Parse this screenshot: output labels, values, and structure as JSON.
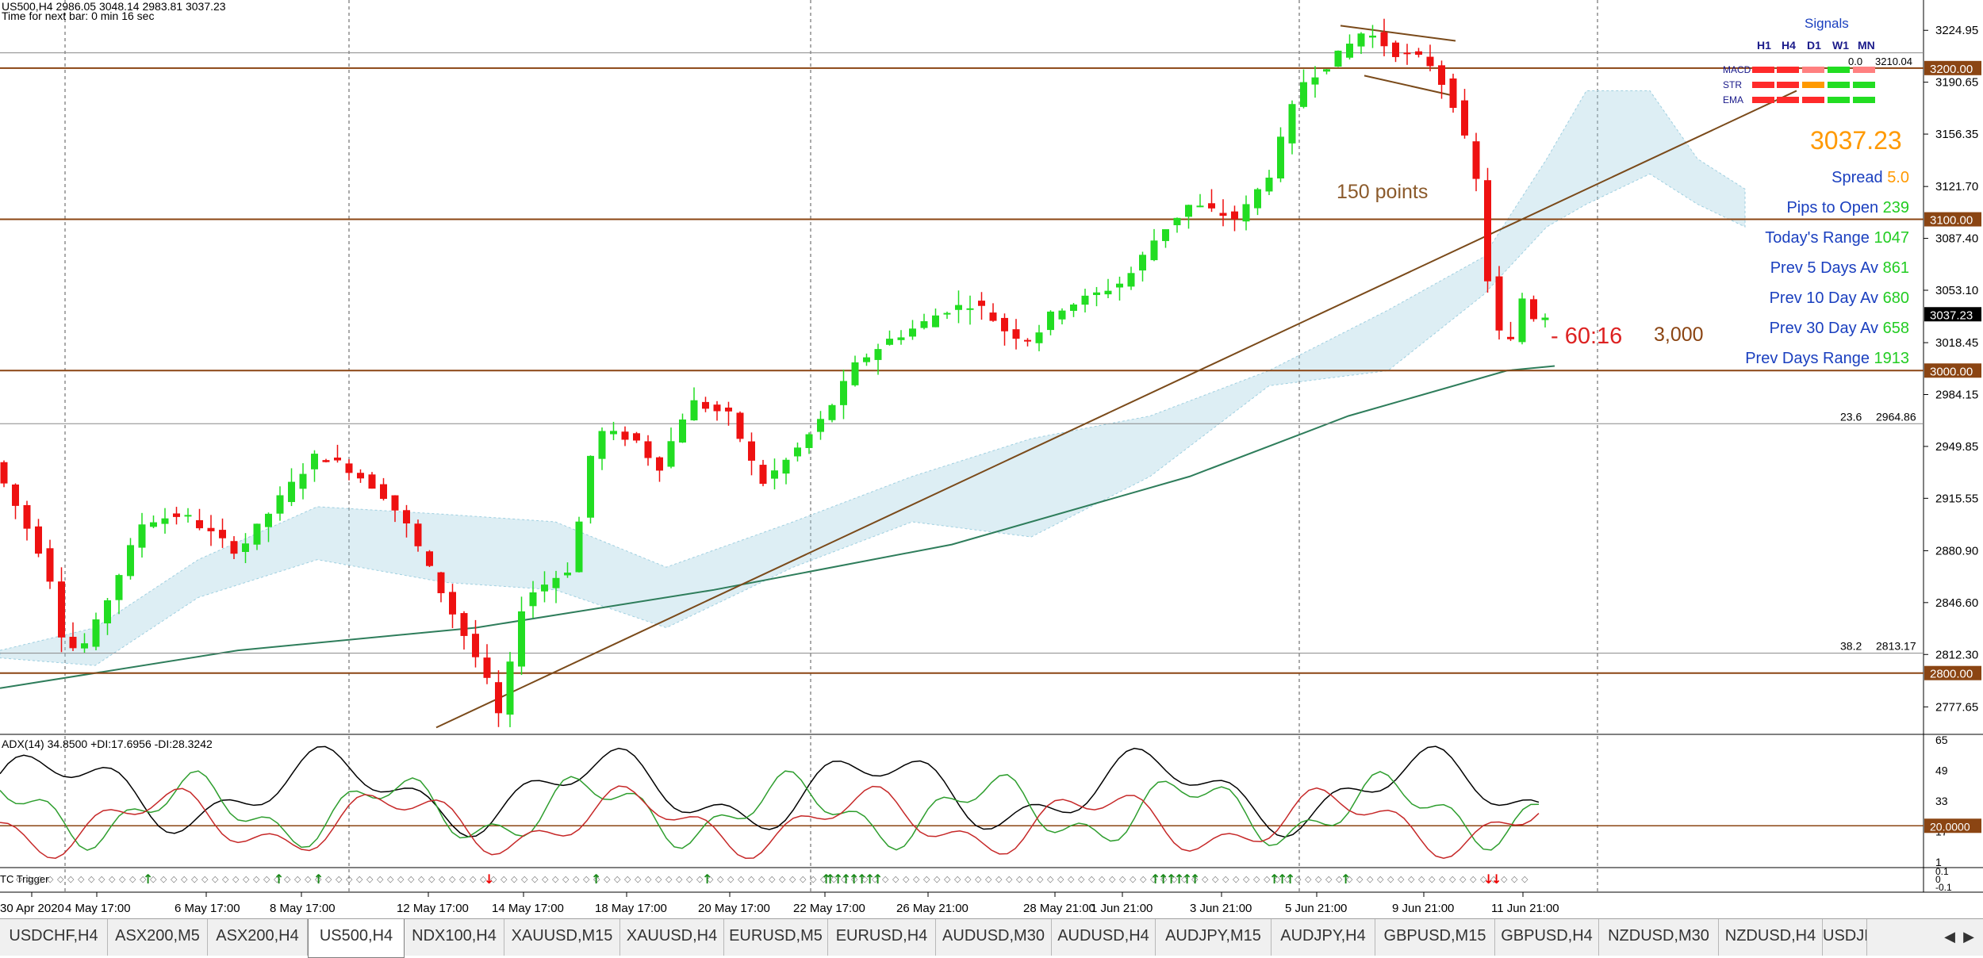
{
  "header": {
    "symbol_line": "US500,H4  2986.05 3048.14 2983.81 3037.23",
    "time_next_bar": "Time for next bar: 0 min 16 sec"
  },
  "price_axis": {
    "ticks": [
      "3224.95",
      "3190.65",
      "3156.35",
      "3121.70",
      "3087.40",
      "3053.10",
      "3018.45",
      "2984.15",
      "2949.85",
      "2915.55",
      "2880.90",
      "2846.60",
      "2812.30",
      "2777.65"
    ],
    "level_labels": [
      {
        "value": 3200,
        "text": "3200.00"
      },
      {
        "value": 3100,
        "text": "3100.00"
      },
      {
        "value": 3037.23,
        "text": "3037.23"
      },
      {
        "value": 3000,
        "text": "3000.00"
      },
      {
        "value": 2800,
        "text": "2800.00"
      }
    ],
    "min": 2760,
    "max": 3245
  },
  "time_axis": {
    "labels": [
      "30 Apr 2020",
      "4 May 17:00",
      "6 May 17:00",
      "8 May 17:00",
      "12 May 17:00",
      "14 May 17:00",
      "18 May 17:00",
      "20 May 17:00",
      "22 May 17:00",
      "26 May 21:00",
      "28 May 21:00",
      "1 Jun 21:00",
      "3 Jun 21:00",
      "5 Jun 21:00",
      "9 Jun 21:00",
      "11 Jun 21:00"
    ]
  },
  "signals": {
    "title": "Signals",
    "timeframes": [
      "H1",
      "H4",
      "D1",
      "W1",
      "MN"
    ],
    "rows": [
      {
        "name": "MACD",
        "colors": [
          "#ff2a2a",
          "#ff2a2a",
          "#ff8080",
          "#22dd22",
          "#ff8080"
        ]
      },
      {
        "name": "STR",
        "colors": [
          "#ff2a2a",
          "#ff2a2a",
          "#ff9900",
          "#22dd22",
          "#22dd22"
        ]
      },
      {
        "name": "EMA",
        "colors": [
          "#ff2a2a",
          "#ff2a2a",
          "#ff2a2a",
          "#22dd22",
          "#22dd22"
        ]
      }
    ]
  },
  "info_panel": {
    "price": "3037.23",
    "rows": [
      {
        "label": "Spread",
        "value": "5.0",
        "value_color": "#ff9900"
      },
      {
        "label": "Pips to Open",
        "value": "239",
        "value_color": "#22cc22"
      },
      {
        "label": "Today's Range",
        "value": "1047",
        "value_color": "#22cc22"
      },
      {
        "label": "Prev 5 Days Av",
        "value": "861",
        "value_color": "#22cc22"
      },
      {
        "label": "Prev 10 Day Av",
        "value": "680",
        "value_color": "#22cc22"
      },
      {
        "label": "Prev 30 Day Av",
        "value": "658",
        "value_color": "#22cc22"
      },
      {
        "label": "Prev Days Range",
        "value": "1913",
        "value_color": "#22cc22"
      }
    ]
  },
  "annotations": {
    "points": "150 points",
    "countdown": "- 60:16",
    "level_3000": "3,000",
    "macd_val": "0.0",
    "macd_price": "3210.04",
    "fib_23": "23.6",
    "fib_23_val": "2964.86",
    "fib_38": "38.2",
    "fib_38_val": "2813.17"
  },
  "adx": {
    "label": "ADX(14) 34.8500 +DI:17.6956 -DI:28.3242",
    "ticks": [
      "65",
      "49",
      "33",
      "17",
      "1"
    ],
    "level": "20.0000",
    "colors": {
      "adx": "#000000",
      "plus_di": "#2e9e2e",
      "minus_di": "#c62828"
    }
  },
  "tc": {
    "label": "TC Trigger",
    "ticks": [
      "0.1",
      "0",
      "-0.1"
    ]
  },
  "colors": {
    "bull": "#22dd22",
    "bear": "#ee1111",
    "level_line": "#8b4513",
    "cloud": "#9ecfe0",
    "ma": "#2e7d5b"
  },
  "tabs": [
    {
      "label": "USDCHF,H4",
      "active": false
    },
    {
      "label": "ASX200,M5",
      "active": false
    },
    {
      "label": "ASX200,H4",
      "active": false
    },
    {
      "label": "US500,H4",
      "active": true
    },
    {
      "label": "NDX100,H4",
      "active": false
    },
    {
      "label": "XAUUSD,M15",
      "active": false
    },
    {
      "label": "XAUUSD,H4",
      "active": false
    },
    {
      "label": "EURUSD,M5",
      "active": false
    },
    {
      "label": "EURUSD,H4",
      "active": false
    },
    {
      "label": "AUDUSD,M30",
      "active": false
    },
    {
      "label": "AUDUSD,H4",
      "active": false
    },
    {
      "label": "AUDJPY,M15",
      "active": false
    },
    {
      "label": "AUDJPY,H4",
      "active": false
    },
    {
      "label": "GBPUSD,M15",
      "active": false
    },
    {
      "label": "GBPUSD,H4",
      "active": false
    },
    {
      "label": "NZDUSD,M30",
      "active": false
    },
    {
      "label": "NZDUSD,H4",
      "active": false
    },
    {
      "label": "USDJF",
      "active": false
    }
  ]
}
